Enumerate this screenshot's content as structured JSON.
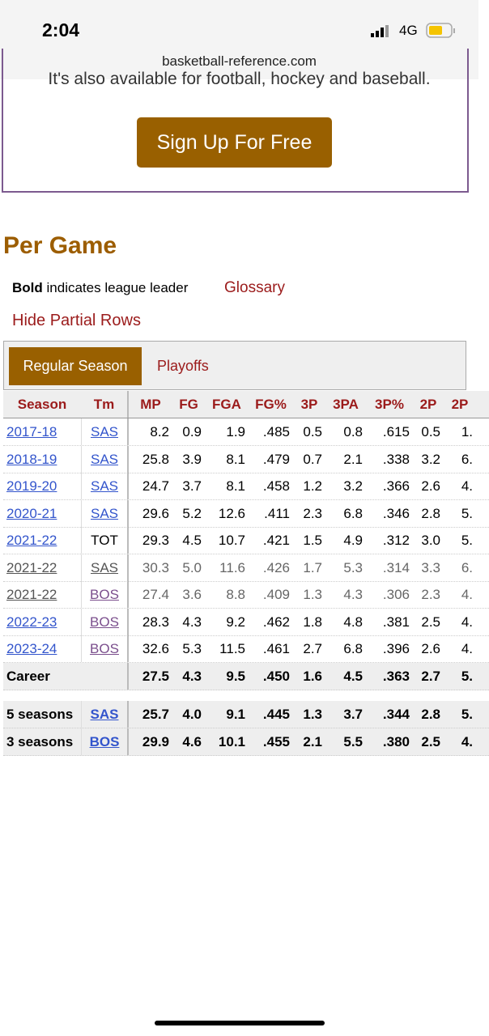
{
  "status": {
    "time": "2:04",
    "network": "4G"
  },
  "url": "basketball-reference.com",
  "promo": {
    "text": "It's also available for football, hockey and baseball.",
    "button": "Sign Up For Free"
  },
  "section": {
    "title": "Per Game",
    "legend_bold": "Bold",
    "legend_rest": "indicates league leader",
    "glossary": "Glossary",
    "hide_partial": "Hide Partial Rows"
  },
  "tabs": [
    "Regular Season",
    "Playoffs"
  ],
  "table": {
    "header": [
      "Season",
      "Tm",
      "MP",
      "FG",
      "FGA",
      "FG%",
      "3P",
      "3PA",
      "3P%",
      "2P",
      "2P"
    ],
    "rows": [
      {
        "kind": "season",
        "cells": [
          "2017-18",
          "SAS",
          "8.2",
          "0.9",
          "1.9",
          ".485",
          "0.5",
          "0.8",
          ".615",
          "0.5",
          "1."
        ]
      },
      {
        "kind": "season",
        "cells": [
          "2018-19",
          "SAS",
          "25.8",
          "3.9",
          "8.1",
          ".479",
          "0.7",
          "2.1",
          ".338",
          "3.2",
          "6."
        ]
      },
      {
        "kind": "season",
        "cells": [
          "2019-20",
          "SAS",
          "24.7",
          "3.7",
          "8.1",
          ".458",
          "1.2",
          "3.2",
          ".366",
          "2.6",
          "4."
        ]
      },
      {
        "kind": "season",
        "cells": [
          "2020-21",
          "SAS",
          "29.6",
          "5.2",
          "12.6",
          ".411",
          "2.3",
          "6.8",
          ".346",
          "2.8",
          "5."
        ]
      },
      {
        "kind": "total",
        "cells": [
          "2021-22",
          "TOT",
          "29.3",
          "4.5",
          "10.7",
          ".421",
          "1.5",
          "4.9",
          ".312",
          "3.0",
          "5."
        ]
      },
      {
        "kind": "partial",
        "cells": [
          "2021-22",
          "SAS",
          "30.3",
          "5.0",
          "11.6",
          ".426",
          "1.7",
          "5.3",
          ".314",
          "3.3",
          "6."
        ]
      },
      {
        "kind": "partial",
        "cells": [
          "2021-22",
          "BOS",
          "27.4",
          "3.6",
          "8.8",
          ".409",
          "1.3",
          "4.3",
          ".306",
          "2.3",
          "4."
        ]
      },
      {
        "kind": "season",
        "cells": [
          "2022-23",
          "BOS",
          "28.3",
          "4.3",
          "9.2",
          ".462",
          "1.8",
          "4.8",
          ".381",
          "2.5",
          "4."
        ]
      },
      {
        "kind": "season",
        "cells": [
          "2023-24",
          "BOS",
          "32.6",
          "5.3",
          "11.5",
          ".461",
          "2.7",
          "6.8",
          ".396",
          "2.6",
          "4."
        ]
      },
      {
        "kind": "career",
        "cells": [
          "Career",
          null,
          "27.5",
          "4.3",
          "9.5",
          ".450",
          "1.6",
          "4.5",
          ".363",
          "2.7",
          "5."
        ]
      },
      {
        "kind": "summary",
        "cells": [
          "5 seasons",
          "SAS",
          "25.7",
          "4.0",
          "9.1",
          ".445",
          "1.3",
          "3.7",
          ".344",
          "2.8",
          "5."
        ]
      },
      {
        "kind": "summary",
        "cells": [
          "3 seasons",
          "BOS",
          "29.9",
          "4.6",
          "10.1",
          ".455",
          "2.1",
          "5.5",
          ".380",
          "2.5",
          "4."
        ]
      }
    ]
  }
}
